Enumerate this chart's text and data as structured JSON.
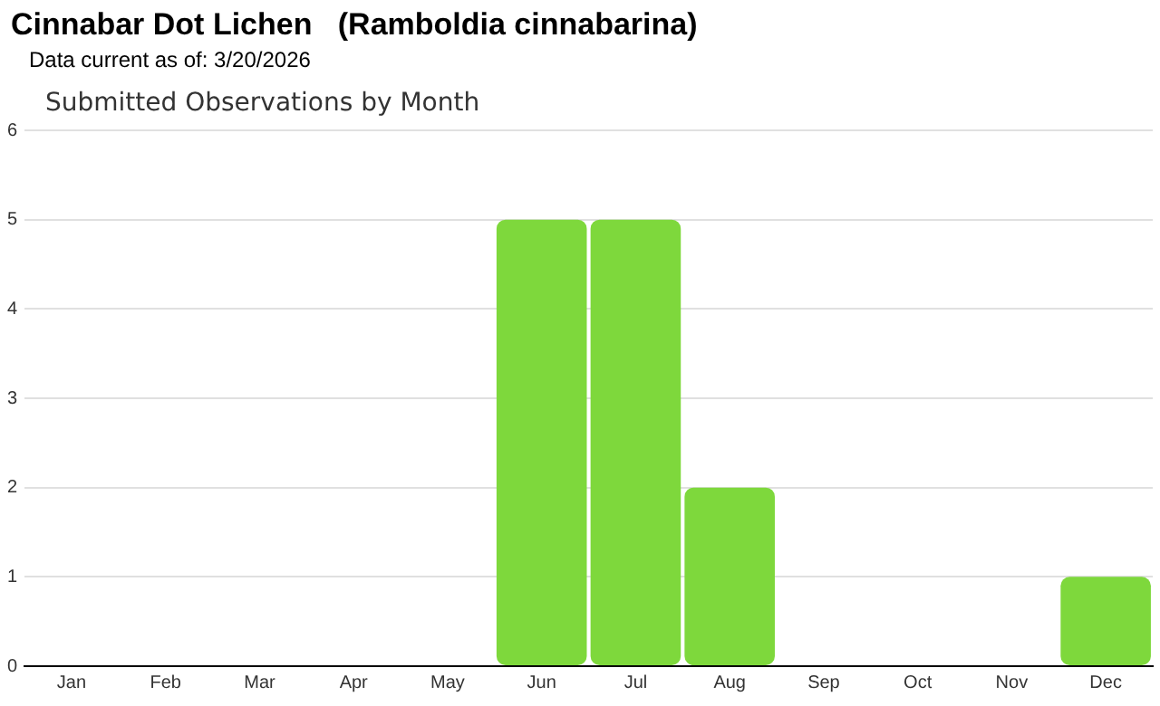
{
  "chart_data": {
    "type": "bar",
    "title": "Cinnabar Dot Lichen   (Ramboldia cinnabarina)",
    "subtitle": "Data current as of: 3/20/2026",
    "annotations": [
      "Submitted Observations by Month"
    ],
    "categories": [
      "Jan",
      "Feb",
      "Mar",
      "Apr",
      "May",
      "Jun",
      "Jul",
      "Aug",
      "Sep",
      "Oct",
      "Nov",
      "Dec"
    ],
    "values": [
      0,
      0,
      0,
      0,
      0,
      5,
      5,
      2,
      0,
      0,
      0,
      1
    ],
    "color": "#7ed83c",
    "ylim": [
      0,
      6
    ],
    "yticks": [
      0,
      1,
      2,
      3,
      4,
      5,
      6
    ],
    "grid": "y",
    "legend": false
  }
}
